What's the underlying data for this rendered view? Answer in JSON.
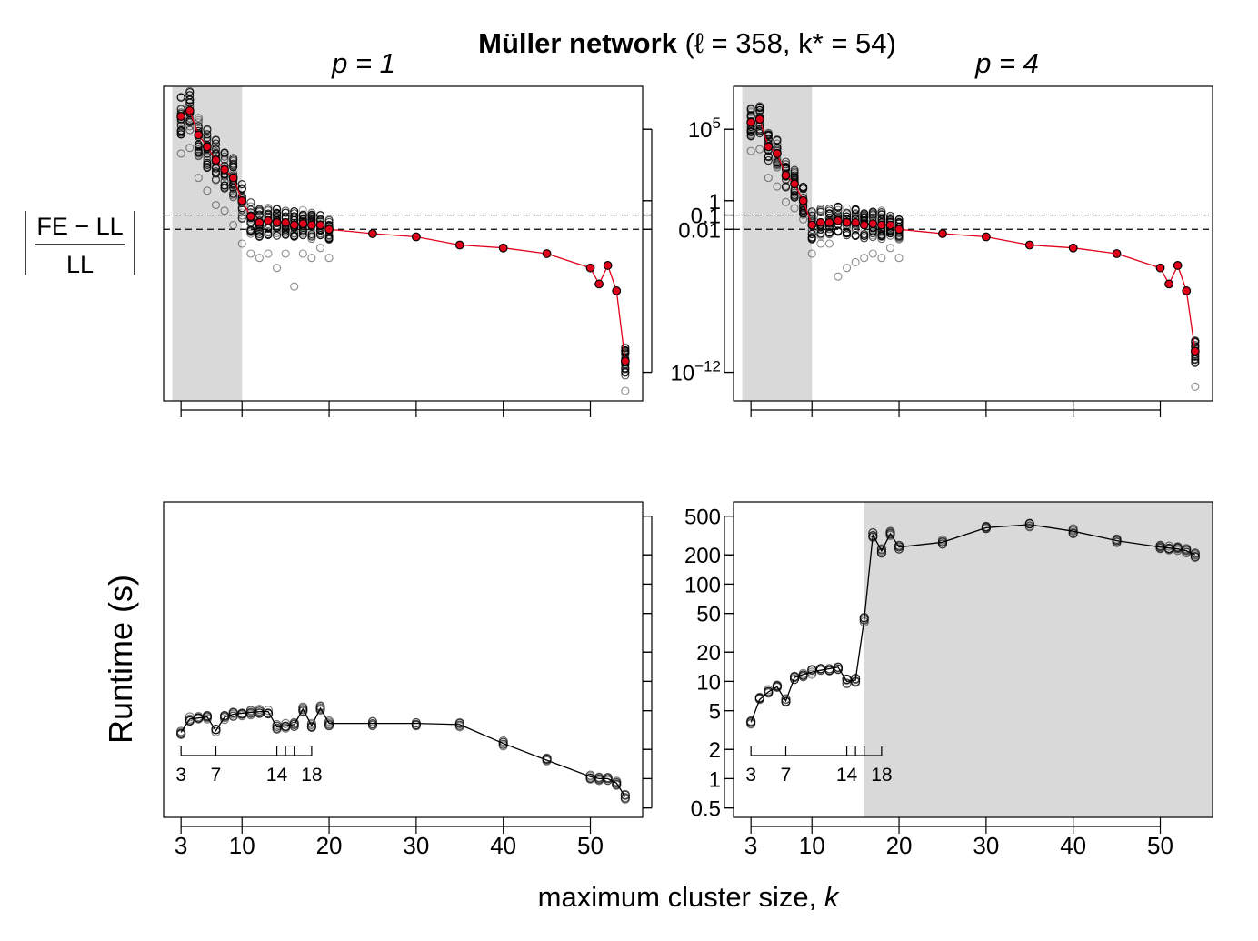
{
  "figure": {
    "title_bold": "Müller network",
    "title_params": " (ℓ = 358, k* = 54)",
    "panel_left_label": "p = 1",
    "panel_right_label": "p = 4",
    "xlabel": "maximum cluster size, k",
    "ylabel_top_numerator": "FE − LL",
    "ylabel_top_denominator": "LL",
    "ylabel_bottom": "Runtime (s)"
  },
  "chart_data": [
    {
      "id": "error_p1",
      "type": "scatter",
      "title": "p = 1",
      "ylabel": "|FE − LL| / LL",
      "yscale": "log",
      "ylim": [
        1e-14,
        100000000.0
      ],
      "yticks": [
        1e-12,
        0.01,
        0.1,
        1,
        100000.0
      ],
      "ytick_labels": [
        "10^-12",
        "0.01",
        "0.1",
        "1",
        "10^5"
      ],
      "reference_lines": [
        0.01,
        0.1
      ],
      "shaded_x_range": [
        2,
        10
      ],
      "x": [
        3,
        4,
        5,
        6,
        7,
        8,
        9,
        10,
        11,
        12,
        13,
        14,
        15,
        16,
        17,
        18,
        19,
        20,
        25,
        30,
        35,
        40,
        45,
        50,
        51,
        52,
        53,
        54
      ],
      "mean": [
        800000.0,
        2000000.0,
        40000.0,
        6000,
        700,
        150,
        40,
        1,
        0.08,
        0.03,
        0.04,
        0.03,
        0.03,
        0.02,
        0.025,
        0.02,
        0.02,
        0.01,
        0.005,
        0.003,
        0.0008,
        0.0005,
        0.0002,
        2e-05,
        1.5e-06,
        3e-05,
        5e-07,
        6e-12
      ],
      "spread_decades": [
        3,
        3,
        3,
        3,
        3,
        3,
        3,
        2.5,
        2.5,
        2,
        2,
        2,
        2,
        2,
        2,
        2,
        1.5,
        1.5,
        0,
        0,
        0,
        0,
        0,
        0,
        0,
        0,
        0,
        2
      ],
      "min_outlier": [
        2000.0,
        5000.0,
        40,
        5,
        0.5,
        0.2,
        0.02,
        0.001,
        0.0002,
        0.0001,
        0.0002,
        2e-05,
        0.0002,
        1e-06,
        0.0002,
        0.0001,
        0.0005,
        0.0001,
        null,
        null,
        null,
        null,
        null,
        null,
        null,
        null,
        null,
        5e-14
      ]
    },
    {
      "id": "error_p4",
      "type": "scatter",
      "title": "p = 4",
      "ylabel": "|FE − LL| / LL",
      "yscale": "log",
      "ylim": [
        1e-14,
        100000000.0
      ],
      "yticks": [
        1e-12,
        0.01,
        0.1,
        1,
        100000.0
      ],
      "ytick_labels": [
        "10^-12",
        "0.01",
        "0.1",
        "1",
        "10^5"
      ],
      "reference_lines": [
        0.01,
        0.1
      ],
      "shaded_x_range": [
        2,
        10
      ],
      "x": [
        3,
        4,
        5,
        6,
        7,
        8,
        9,
        10,
        11,
        12,
        13,
        14,
        15,
        16,
        17,
        18,
        19,
        20,
        25,
        30,
        35,
        40,
        45,
        50,
        51,
        52,
        53,
        54
      ],
      "mean": [
        300000.0,
        500000.0,
        6000.0,
        2000.0,
        60,
        15,
        1,
        0.02,
        0.03,
        0.03,
        0.04,
        0.03,
        0.03,
        0.02,
        0.025,
        0.02,
        0.02,
        0.01,
        0.005,
        0.003,
        0.0008,
        0.0005,
        0.0002,
        2e-05,
        1.5e-06,
        3e-05,
        5e-07,
        3e-11
      ],
      "spread_decades": [
        2,
        2,
        2,
        2,
        2,
        2,
        2,
        2,
        2,
        2,
        2,
        2,
        2,
        2,
        2,
        2,
        1.5,
        1.5,
        0,
        0,
        0,
        0,
        0,
        0,
        0,
        0,
        0,
        2
      ],
      "min_outlier": [
        3000.0,
        4000.0,
        40,
        10,
        0.8,
        0.3,
        0.05,
        0.0002,
        0.001,
        0.001,
        5e-06,
        2e-05,
        5e-05,
        0.0001,
        0.0002,
        0.0001,
        0.0005,
        0.0001,
        null,
        null,
        null,
        null,
        null,
        null,
        null,
        null,
        null,
        1e-13
      ]
    },
    {
      "id": "runtime_p1",
      "type": "line",
      "ylabel": "Runtime (s)",
      "yscale": "log",
      "ylim": [
        0.4,
        700
      ],
      "yticks": [
        0.5,
        1,
        2,
        5,
        10,
        20,
        50,
        100,
        200,
        500
      ],
      "ytick_labels": [
        "0.5",
        "1",
        "2",
        "5",
        "10",
        "20",
        "50",
        "100",
        "200",
        "500"
      ],
      "inset_ticks": [
        3,
        7,
        14,
        15,
        16,
        18
      ],
      "inset_tick_labels": [
        "3",
        "7",
        "14",
        "18"
      ],
      "x": [
        3,
        4,
        5,
        6,
        7,
        8,
        9,
        10,
        11,
        12,
        13,
        14,
        15,
        16,
        17,
        18,
        19,
        20,
        25,
        30,
        35,
        40,
        45,
        50,
        51,
        52,
        53,
        54
      ],
      "y": [
        3.0,
        4.1,
        4.2,
        4.3,
        3.1,
        4.3,
        4.6,
        4.7,
        4.8,
        4.9,
        4.9,
        3.4,
        3.5,
        3.6,
        5.2,
        3.5,
        5.3,
        3.7,
        3.7,
        3.7,
        3.6,
        2.3,
        1.55,
        1.05,
        1.0,
        1.0,
        0.9,
        0.65
      ]
    },
    {
      "id": "runtime_p4",
      "type": "line",
      "ylabel": "Runtime (s)",
      "yscale": "log",
      "ylim": [
        0.4,
        700
      ],
      "yticks": [
        0.5,
        1,
        2,
        5,
        10,
        20,
        50,
        100,
        200,
        500
      ],
      "ytick_labels": [
        "0.5",
        "1",
        "2",
        "5",
        "10",
        "20",
        "50",
        "100",
        "200",
        "500"
      ],
      "inset_ticks": [
        3,
        7,
        14,
        15,
        16,
        18
      ],
      "inset_tick_labels": [
        "3",
        "7",
        "14",
        "18"
      ],
      "shaded_x_range": [
        16,
        56
      ],
      "x": [
        3,
        4,
        5,
        6,
        7,
        8,
        9,
        10,
        11,
        12,
        13,
        14,
        15,
        16,
        17,
        18,
        19,
        20,
        25,
        30,
        35,
        40,
        45,
        50,
        51,
        52,
        53,
        54
      ],
      "y": [
        3.8,
        6.5,
        7.8,
        8.8,
        6.3,
        11,
        11.8,
        12.5,
        13,
        13.5,
        14,
        10,
        10.3,
        43,
        320,
        220,
        330,
        240,
        270,
        380,
        410,
        350,
        280,
        240,
        235,
        230,
        220,
        200
      ]
    }
  ],
  "x_axis": {
    "ticks": [
      3,
      10,
      20,
      30,
      40,
      50
    ],
    "tick_labels": [
      "3",
      "10",
      "20",
      "30",
      "40",
      "50"
    ],
    "xlim": [
      1,
      56
    ]
  }
}
